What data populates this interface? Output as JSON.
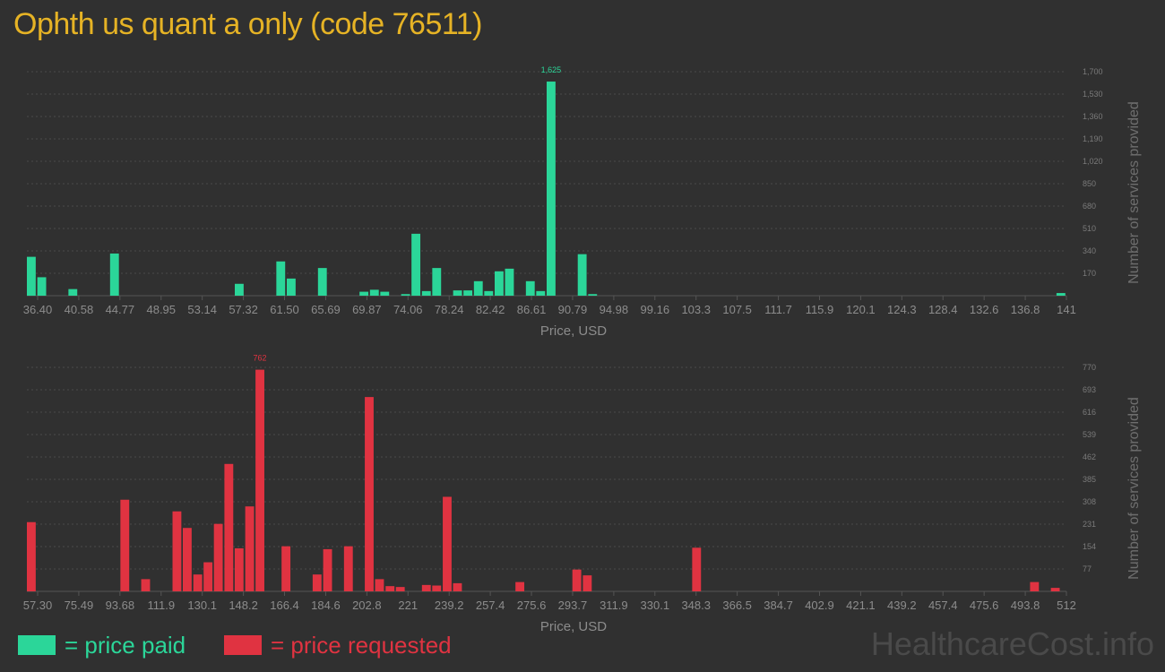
{
  "title": "Ophth us quant a only (code 76511)",
  "legend": {
    "paid_label": "= price paid",
    "requested_label": "= price requested",
    "paid_color": "#2bd699",
    "requested_color": "#e03341"
  },
  "watermark": "HealthcareCost.info",
  "chart_data": [
    {
      "type": "bar",
      "xlabel": "Price, USD",
      "ylabel": "Number of services provided",
      "ylim": [
        0,
        1700
      ],
      "yticks": [
        170,
        340,
        510,
        680,
        850,
        "1,020",
        "1,190",
        "1,360",
        "1,530",
        "1,700"
      ],
      "ytick_values": [
        170,
        340,
        510,
        680,
        850,
        1020,
        1190,
        1360,
        1530,
        1700
      ],
      "xticks": [
        "36.40",
        "40.58",
        "44.77",
        "48.95",
        "53.14",
        "57.32",
        "61.50",
        "65.69",
        "69.87",
        "74.06",
        "78.24",
        "82.42",
        "86.61",
        "90.79",
        "94.98",
        "99.16",
        "103.3",
        "107.5",
        "111.7",
        "115.9",
        "120.1",
        "124.3",
        "128.4",
        "132.6",
        "136.8",
        "141"
      ],
      "xlim": [
        36.4,
        141
      ],
      "bin_width": 1.046,
      "color": "#2bd699",
      "grid": true,
      "max_label": "1,625",
      "bins": [
        {
          "x": 36.4,
          "y": 295
        },
        {
          "x": 37.45,
          "y": 140
        },
        {
          "x": 40.58,
          "y": 50
        },
        {
          "x": 44.77,
          "y": 320
        },
        {
          "x": 57.32,
          "y": 90
        },
        {
          "x": 61.5,
          "y": 260
        },
        {
          "x": 62.55,
          "y": 130
        },
        {
          "x": 65.69,
          "y": 210
        },
        {
          "x": 69.87,
          "y": 30
        },
        {
          "x": 70.92,
          "y": 45
        },
        {
          "x": 71.96,
          "y": 30
        },
        {
          "x": 74.06,
          "y": 12
        },
        {
          "x": 75.1,
          "y": 470
        },
        {
          "x": 76.15,
          "y": 35
        },
        {
          "x": 77.19,
          "y": 210
        },
        {
          "x": 79.29,
          "y": 40
        },
        {
          "x": 80.33,
          "y": 40
        },
        {
          "x": 81.38,
          "y": 110
        },
        {
          "x": 82.42,
          "y": 35
        },
        {
          "x": 83.47,
          "y": 185
        },
        {
          "x": 84.51,
          "y": 205
        },
        {
          "x": 86.61,
          "y": 110
        },
        {
          "x": 87.65,
          "y": 35
        },
        {
          "x": 88.7,
          "y": 1625
        },
        {
          "x": 91.83,
          "y": 315
        },
        {
          "x": 92.88,
          "y": 12
        },
        {
          "x": 140.0,
          "y": 20
        }
      ]
    },
    {
      "type": "bar",
      "xlabel": "Price, USD",
      "ylabel": "Number of services provided",
      "ylim": [
        0,
        770
      ],
      "yticks": [
        77,
        154,
        231,
        308,
        385,
        462,
        539,
        616,
        693,
        770
      ],
      "xticks": [
        "57.30",
        "75.49",
        "93.68",
        "111.9",
        "130.1",
        "148.2",
        "166.4",
        "184.6",
        "202.8",
        "221",
        "239.2",
        "257.4",
        "275.6",
        "293.7",
        "311.9",
        "330.1",
        "348.3",
        "366.5",
        "384.7",
        "402.9",
        "421.1",
        "439.2",
        "457.4",
        "475.6",
        "493.8",
        "512"
      ],
      "xlim": [
        57.3,
        512
      ],
      "bin_width": 4.547,
      "color": "#e03341",
      "grid": true,
      "max_label": "762",
      "bins": [
        {
          "x": 57.3,
          "y": 238
        },
        {
          "x": 98.2,
          "y": 315
        },
        {
          "x": 107.3,
          "y": 42
        },
        {
          "x": 121.0,
          "y": 275
        },
        {
          "x": 125.5,
          "y": 218
        },
        {
          "x": 130.1,
          "y": 58
        },
        {
          "x": 134.6,
          "y": 100
        },
        {
          "x": 139.1,
          "y": 232
        },
        {
          "x": 143.7,
          "y": 438
        },
        {
          "x": 148.2,
          "y": 148
        },
        {
          "x": 152.8,
          "y": 292
        },
        {
          "x": 157.3,
          "y": 762
        },
        {
          "x": 168.7,
          "y": 155
        },
        {
          "x": 182.3,
          "y": 58
        },
        {
          "x": 186.9,
          "y": 145
        },
        {
          "x": 196.0,
          "y": 155
        },
        {
          "x": 205.1,
          "y": 668
        },
        {
          "x": 209.6,
          "y": 42
        },
        {
          "x": 214.2,
          "y": 18
        },
        {
          "x": 218.7,
          "y": 15
        },
        {
          "x": 230.1,
          "y": 22
        },
        {
          "x": 234.6,
          "y": 20
        },
        {
          "x": 239.2,
          "y": 325
        },
        {
          "x": 243.7,
          "y": 28
        },
        {
          "x": 271.0,
          "y": 32
        },
        {
          "x": 295.9,
          "y": 75
        },
        {
          "x": 300.5,
          "y": 55
        },
        {
          "x": 348.3,
          "y": 150
        },
        {
          "x": 496.1,
          "y": 32
        },
        {
          "x": 505.2,
          "y": 12
        }
      ]
    }
  ]
}
